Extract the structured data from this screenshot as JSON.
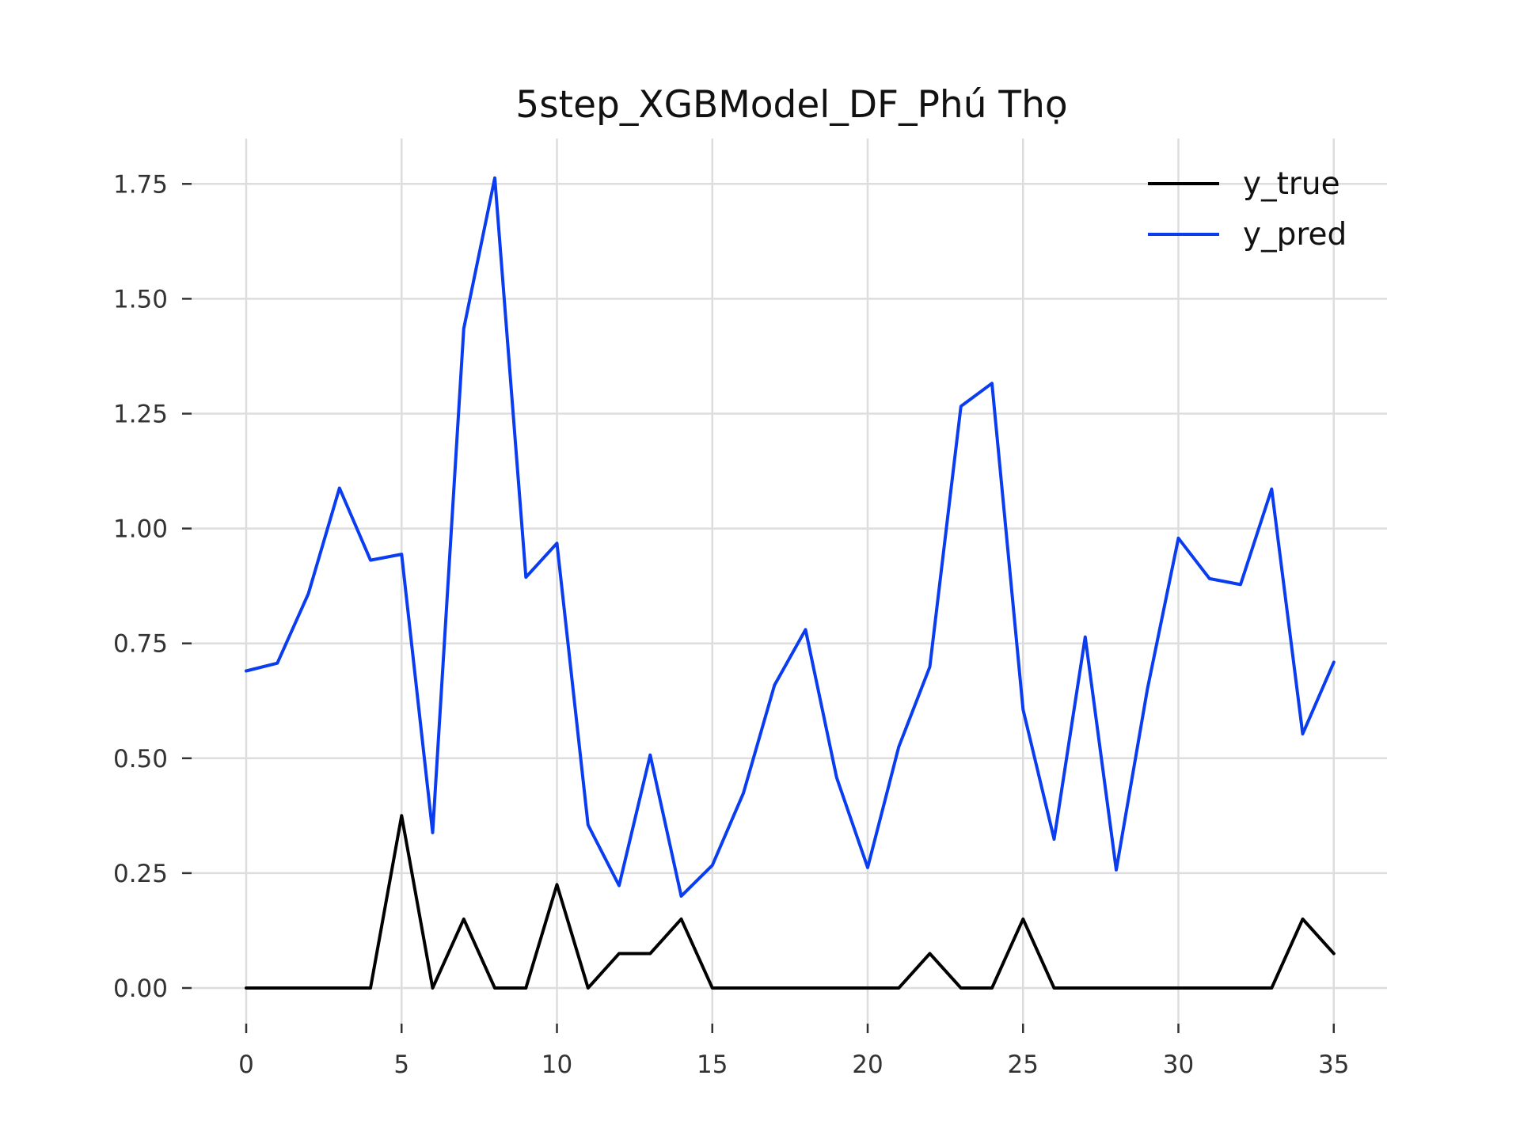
{
  "chart_data": {
    "type": "line",
    "title": "5step_XGBModel_DF_Phú Thọ",
    "xlabel": "",
    "ylabel": "",
    "xlim": [
      -0.5,
      36
    ],
    "ylim": [
      -0.08,
      1.85
    ],
    "xticks": [
      0,
      5,
      10,
      15,
      20,
      25,
      30,
      35
    ],
    "xtick_labels": [
      "0",
      "5",
      "10",
      "15",
      "20",
      "25",
      "30",
      "35"
    ],
    "yticks": [
      0,
      0.25,
      0.5,
      0.75,
      1.0,
      1.25,
      1.5,
      1.75
    ],
    "ytick_labels": [
      "0.00",
      "0.25",
      "0.50",
      "0.75",
      "1.00",
      "1.25",
      "1.50",
      "1.75"
    ],
    "grid": true,
    "legend_position": "top-right",
    "x": [
      0,
      1,
      2,
      3,
      4,
      5,
      6,
      7,
      8,
      9,
      10,
      11,
      12,
      13,
      14,
      15,
      16,
      17,
      18,
      19,
      20,
      21,
      22,
      23,
      24,
      25,
      26,
      27,
      28,
      29,
      30,
      31,
      32,
      33,
      34,
      35
    ],
    "series": [
      {
        "name": "y_true",
        "color": "#000000",
        "values": [
          0,
          0,
          0,
          0,
          0,
          0.375,
          0,
          0.15,
          0,
          0,
          0.225,
          0,
          0.075,
          0.075,
          0.15,
          0,
          0,
          0,
          0,
          0,
          0,
          0,
          0.075,
          0,
          0,
          0.15,
          0,
          0,
          0,
          0,
          0,
          0,
          0,
          0,
          0.15,
          0.075
        ]
      },
      {
        "name": "y_pred",
        "color": "#0a3cf0",
        "values": [
          0.69,
          0.707,
          0.858,
          1.088,
          0.931,
          0.944,
          0.338,
          1.435,
          1.763,
          0.894,
          0.968,
          0.355,
          0.223,
          0.507,
          0.2,
          0.267,
          0.424,
          0.659,
          0.78,
          0.458,
          0.262,
          0.525,
          0.699,
          1.266,
          1.316,
          0.606,
          0.324,
          0.764,
          0.257,
          0.65,
          0.979,
          0.891,
          0.878,
          1.086,
          0.553,
          0.709
        ]
      }
    ]
  }
}
